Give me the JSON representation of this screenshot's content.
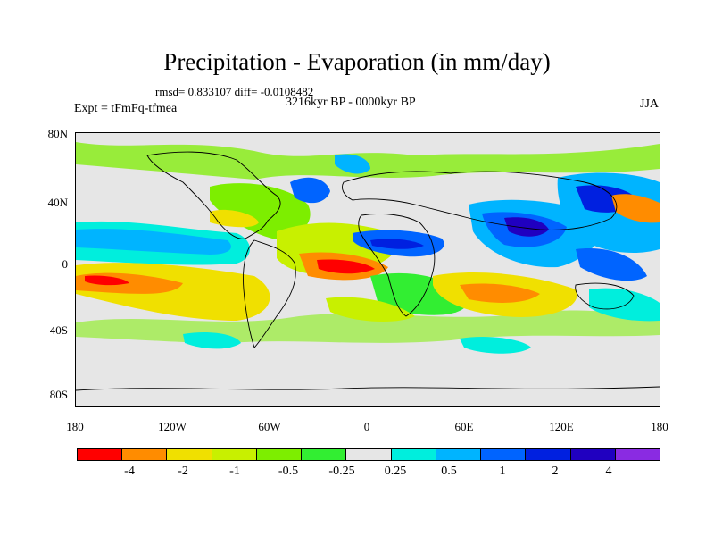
{
  "title": "Precipitation - Evaporation (in mm/day)",
  "stats": "rmsd= 0.833107 diff= -0.0108482",
  "period": "3216kyr BP - 0000kyr BP",
  "experiment": "Expt = tFmFq-tfmea",
  "season": "JJA",
  "map": {
    "lat_ticks": [
      "80N",
      "40N",
      "0",
      "40S",
      "80S"
    ],
    "lon_ticks": [
      "180",
      "120W",
      "60W",
      "0",
      "60E",
      "120E",
      "180"
    ],
    "background_color": "#e6e6e6"
  },
  "colorbar": {
    "colors": [
      "#ff0000",
      "#ff8c00",
      "#f0e000",
      "#c8f000",
      "#7dee00",
      "#32ee32",
      "#e6e6e6",
      "#00eedd",
      "#00b4ff",
      "#0064ff",
      "#0020e0",
      "#2000c0",
      "#8a2be2"
    ],
    "labels": [
      "-4",
      "-2",
      "-1",
      "-0.5",
      "-0.25",
      "0.25",
      "0.5",
      "1",
      "2",
      "4"
    ]
  }
}
